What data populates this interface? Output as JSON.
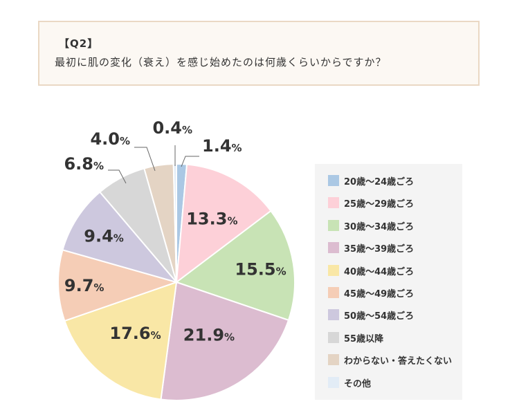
{
  "question": {
    "label": "【Q2】",
    "text": "最初に肌の変化（衰え）を感じ始めたのは何歳くらいからですか？"
  },
  "chart_data": {
    "type": "pie",
    "percent_sign": "%",
    "slices": [
      {
        "label": "20歳〜24歳ごろ",
        "value": 1.4,
        "value_text": "1.4",
        "color": "#abc8e4"
      },
      {
        "label": "25歳〜29歳ごろ",
        "value": 13.3,
        "value_text": "13.3",
        "color": "#fdd0d8"
      },
      {
        "label": "30歳〜34歳ごろ",
        "value": 15.5,
        "value_text": "15.5",
        "color": "#c8e3b5"
      },
      {
        "label": "35歳〜39歳ごろ",
        "value": 21.9,
        "value_text": "21.9",
        "color": "#dcbcd0"
      },
      {
        "label": "40歳〜44歳ごろ",
        "value": 17.6,
        "value_text": "17.6",
        "color": "#f9e7a6"
      },
      {
        "label": "45歳〜49歳ごろ",
        "value": 9.7,
        "value_text": "9.7",
        "color": "#f5cdb6"
      },
      {
        "label": "50歳〜54歳ごろ",
        "value": 9.4,
        "value_text": "9.4",
        "color": "#cdc8de"
      },
      {
        "label": "55歳以降",
        "value": 6.8,
        "value_text": "6.8",
        "color": "#d7d7d7"
      },
      {
        "label": "わからない・答えたくない",
        "value": 4.0,
        "value_text": "4.0",
        "color": "#e4d4c4"
      },
      {
        "label": "その他",
        "value": 0.4,
        "value_text": "0.4",
        "color": "#e2ecf6"
      }
    ],
    "legend_position": "right"
  }
}
